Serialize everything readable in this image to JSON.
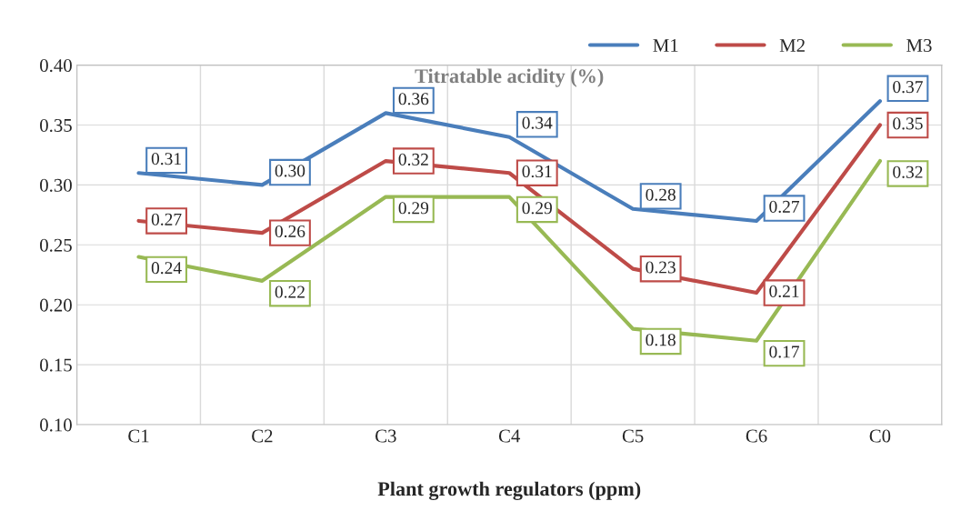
{
  "chart_data": {
    "type": "line",
    "title": "Titratable acidity (%)",
    "xlabel": "Plant growth regulators (ppm)",
    "categories": [
      "C1",
      "C2",
      "C3",
      "C4",
      "C5",
      "C6",
      "C0"
    ],
    "series": [
      {
        "name": "M1",
        "color": "#4a7ebb",
        "values": [
          0.31,
          0.3,
          0.36,
          0.34,
          0.28,
          0.27,
          0.37
        ],
        "value_labels": [
          "0.31",
          "0.30",
          "0.36",
          "0.34",
          "0.28",
          "0.27",
          "0.37"
        ]
      },
      {
        "name": "M2",
        "color": "#be4b48",
        "values": [
          0.27,
          0.26,
          0.32,
          0.31,
          0.23,
          0.21,
          0.35
        ],
        "value_labels": [
          "0.27",
          "0.26",
          "0.32",
          "0.31",
          "0.23",
          "0.21",
          "0.35"
        ]
      },
      {
        "name": "M3",
        "color": "#98b954",
        "values": [
          0.24,
          0.22,
          0.29,
          0.29,
          0.18,
          0.17,
          0.32
        ],
        "value_labels": [
          "0.24",
          "0.22",
          "0.29",
          "0.29",
          "0.18",
          "0.17",
          "0.32"
        ]
      }
    ],
    "ylim": [
      0.1,
      0.4
    ],
    "yticks": [
      {
        "value": 0.1,
        "label": "0.10"
      },
      {
        "value": 0.15,
        "label": "0.15"
      },
      {
        "value": 0.2,
        "label": "0.20"
      },
      {
        "value": 0.25,
        "label": "0.25"
      },
      {
        "value": 0.3,
        "label": "0.30"
      },
      {
        "value": 0.35,
        "label": "0.35"
      },
      {
        "value": 0.4,
        "label": "0.40"
      }
    ],
    "grid": true,
    "legend": "top right",
    "marker": "none",
    "line_style": "solid"
  }
}
